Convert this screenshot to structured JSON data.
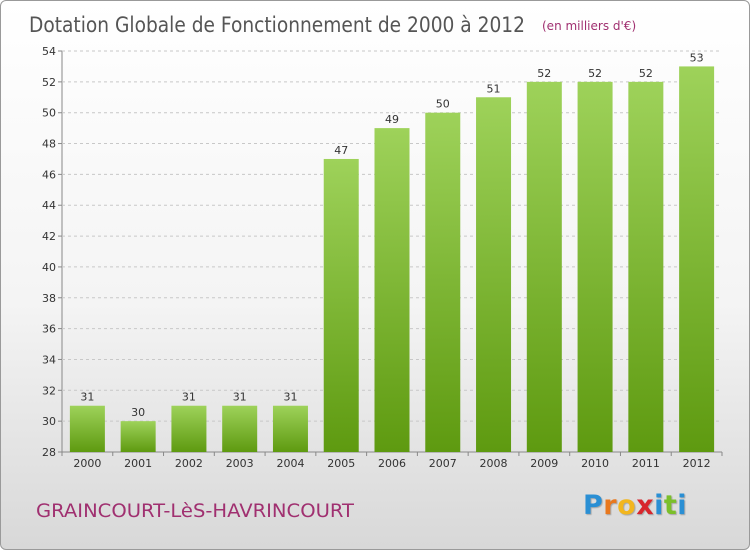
{
  "page": {
    "title": "Dotation Globale de Fonctionnement de 2000 à 2012",
    "unit_note": "(en milliers d'€)",
    "commune": "GRAINCOURT-LèS-HAVRINCOURT",
    "brand": {
      "letters": [
        "P",
        "r",
        "o",
        "x",
        "i",
        "t",
        "i"
      ]
    }
  },
  "colors": {
    "title": "#555555",
    "unit_note": "#a03070",
    "commune": "#a03070",
    "bar_top": "#9ed25a",
    "bar_bottom": "#5e9a10",
    "grid": "#c8c8c8",
    "axis_text": "#333333",
    "brand_letters": [
      "#2a8fd4",
      "#e8781e",
      "#f2b61e",
      "#d8262c",
      "#2a8fd4",
      "#7bbf2a",
      "#2a8fd4"
    ]
  },
  "chart_data": {
    "type": "bar",
    "categories": [
      "2000",
      "2001",
      "2002",
      "2003",
      "2004",
      "2005",
      "2006",
      "2007",
      "2008",
      "2009",
      "2010",
      "2011",
      "2012"
    ],
    "values": [
      31,
      30,
      31,
      31,
      31,
      47,
      49,
      50,
      51,
      52,
      52,
      52,
      53
    ],
    "ylim": [
      28,
      54
    ],
    "yticks": [
      28,
      30,
      32,
      34,
      36,
      38,
      40,
      42,
      44,
      46,
      48,
      50,
      52,
      54
    ],
    "grid": "horizontal dashed",
    "data_labels": true,
    "legend": "none"
  }
}
